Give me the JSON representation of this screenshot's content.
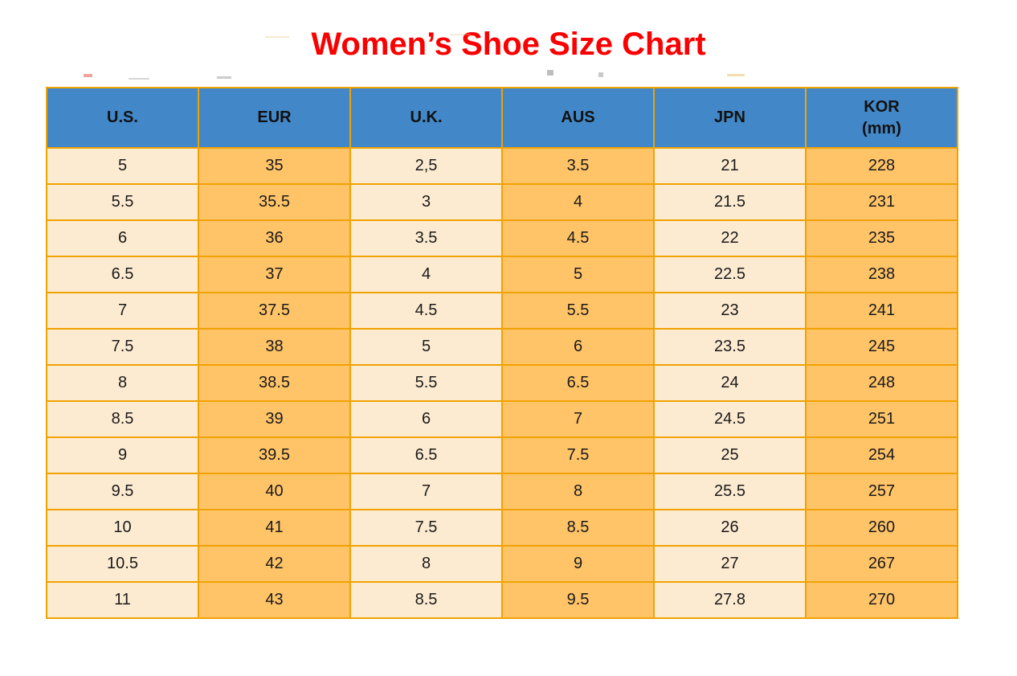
{
  "page": {
    "title": "Women’s Shoe Size Chart"
  },
  "colors": {
    "title_red": "#FB0000",
    "header_bg": "#4288C8",
    "col_light": "#FDEBD1",
    "col_orange": "#FFC368",
    "grid": "#F0A202"
  },
  "table": {
    "headers": [
      {
        "line1": "U.S.",
        "line2": ""
      },
      {
        "line1": "EUR",
        "line2": ""
      },
      {
        "line1": "U.K.",
        "line2": ""
      },
      {
        "line1": "AUS",
        "line2": ""
      },
      {
        "line1": "JPN",
        "line2": ""
      },
      {
        "line1": "KOR",
        "line2": "(mm)"
      }
    ]
  },
  "chart_data": {
    "type": "table",
    "title": "Women’s Shoe Size Chart",
    "columns": [
      "U.S.",
      "EUR",
      "U.K.",
      "AUS",
      "JPN",
      "KOR (mm)"
    ],
    "rows": [
      [
        "5",
        "35",
        "2,5",
        "3.5",
        "21",
        "228"
      ],
      [
        "5.5",
        "35.5",
        "3",
        "4",
        "21.5",
        "231"
      ],
      [
        "6",
        "36",
        "3.5",
        "4.5",
        "22",
        "235"
      ],
      [
        "6.5",
        "37",
        "4",
        "5",
        "22.5",
        "238"
      ],
      [
        "7",
        "37.5",
        "4.5",
        "5.5",
        "23",
        "241"
      ],
      [
        "7.5",
        "38",
        "5",
        "6",
        "23.5",
        "245"
      ],
      [
        "8",
        "38.5",
        "5.5",
        "6.5",
        "24",
        "248"
      ],
      [
        "8.5",
        "39",
        "6",
        "7",
        "24.5",
        "251"
      ],
      [
        "9",
        "39.5",
        "6.5",
        "7.5",
        "25",
        "254"
      ],
      [
        "9.5",
        "40",
        "7",
        "8",
        "25.5",
        "257"
      ],
      [
        "10",
        "41",
        "7.5",
        "8.5",
        "26",
        "260"
      ],
      [
        "10.5",
        "42",
        "8",
        "9",
        "27",
        "267"
      ],
      [
        "11",
        "43",
        "8.5",
        "9.5",
        "27.8",
        "270"
      ]
    ],
    "layout": {
      "column_fill_pattern": [
        "light",
        "orange",
        "light",
        "orange",
        "light",
        "orange"
      ],
      "header_style": "blue band, bold black text",
      "grid": "on"
    }
  }
}
